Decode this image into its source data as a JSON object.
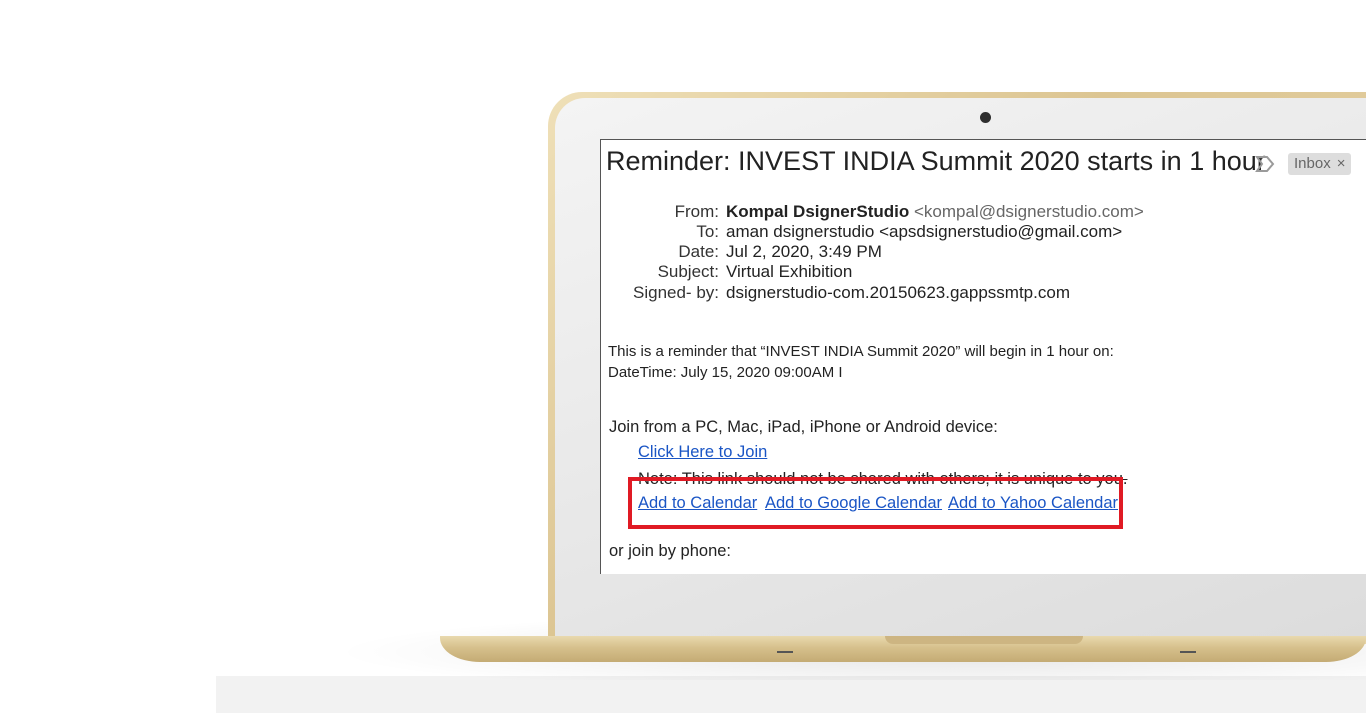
{
  "email": {
    "subject": "Reminder: INVEST INDIA Summit 2020 starts in 1 hour",
    "label_chip": "Inbox",
    "label_remove": "×",
    "headers": {
      "from_label": "From:",
      "from_name": "Kompal DsignerStudio",
      "from_email": "<kompal@dsignerstudio.com>",
      "to_label": "To:",
      "to_value": "aman dsignerstudio <apsdsignerstudio@gmail.com>",
      "date_label": "Date:",
      "date_value": "Jul 2, 2020, 3:49 PM",
      "subject_label": "Subject:",
      "subject_value": "Virtual Exhibition",
      "signed_label": "Signed- by:",
      "signed_value": "dsignerstudio-com.20150623.gappssmtp.com"
    },
    "body": {
      "line1": "This is a reminder that “INVEST INDIA Summit 2020” will begin in 1 hour on:",
      "line2": "DateTime: July 15, 2020 09:00AM I",
      "join_text": "Join from a PC, Mac, iPad, iPhone or Android device:",
      "join_link": "Click Here to Join",
      "note": "Note: This link should not be shared with others; it is unique to you.",
      "calendar_links": [
        "Add to Calendar",
        "Add to Google Calendar",
        "Add to Yahoo Calendar"
      ],
      "phone_text": "or join by phone:"
    }
  },
  "colors": {
    "link": "#1a55c5",
    "highlight": "#e01a24",
    "laptop_gold": "#dcc592"
  }
}
